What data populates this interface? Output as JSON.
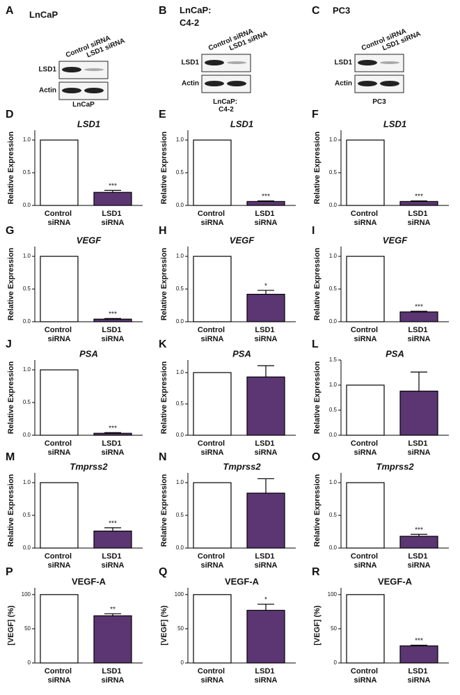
{
  "blots": [
    {
      "panel": "A",
      "title": "LnCaP",
      "lanes": [
        "Control siRNA",
        "LSD1 siRNA"
      ],
      "rows": [
        "LSD1",
        "Actin"
      ],
      "caption": "LnCaP"
    },
    {
      "panel": "B",
      "title": "LnCaP: C4-2",
      "lanes": [
        "Control siRNA",
        "LSD1 siRNA"
      ],
      "rows": [
        "LSD1",
        "Actin"
      ],
      "caption": "LnCaP: C4-2"
    },
    {
      "panel": "C",
      "title": "PC3",
      "lanes": [
        "Control siRNA",
        "LSD1 siRNA"
      ],
      "rows": [
        "LSD1",
        "Actin"
      ],
      "caption": "PC3"
    }
  ],
  "chart_data": [
    {
      "type": "bar",
      "panel": "D",
      "title": "LSD1",
      "ylabel": "Relative Expression",
      "categories": [
        "Control siRNA",
        "LSD1 siRNA"
      ],
      "values": [
        1.0,
        0.2
      ],
      "errors": [
        null,
        0.03
      ],
      "annotation": "***",
      "colors": [
        "#ffffff",
        "#5b3672"
      ],
      "ylim": [
        0,
        1.15
      ],
      "yticks": [
        {
          "value": 0,
          "label": "0.0"
        },
        {
          "value": 0.5,
          "label": "0.5"
        },
        {
          "value": 1,
          "label": "1.0"
        }
      ]
    },
    {
      "type": "bar",
      "panel": "E",
      "title": "LSD1",
      "ylabel": "Relative Expression",
      "categories": [
        "Control siRNA",
        "LSD1 siRNA"
      ],
      "values": [
        1.0,
        0.06
      ],
      "errors": [
        null,
        0.01
      ],
      "annotation": "***",
      "colors": [
        "#ffffff",
        "#5b3672"
      ],
      "ylim": [
        0,
        1.15
      ],
      "yticks": [
        {
          "value": 0,
          "label": "0.0"
        },
        {
          "value": 0.5,
          "label": "0.5"
        },
        {
          "value": 1,
          "label": "1.0"
        }
      ]
    },
    {
      "type": "bar",
      "panel": "F",
      "title": "LSD1",
      "ylabel": "Relative Expression",
      "categories": [
        "Control siRNA",
        "LSD1 siRNA"
      ],
      "values": [
        1.0,
        0.06
      ],
      "errors": [
        null,
        0.01
      ],
      "annotation": "***",
      "colors": [
        "#ffffff",
        "#5b3672"
      ],
      "ylim": [
        0,
        1.15
      ],
      "yticks": [
        {
          "value": 0,
          "label": "0.0"
        },
        {
          "value": 0.5,
          "label": "0.5"
        },
        {
          "value": 1,
          "label": "1.0"
        }
      ]
    },
    {
      "type": "bar",
      "panel": "G",
      "title": "VEGF",
      "ylabel": "Relative Expression",
      "categories": [
        "Control siRNA",
        "LSD1 siRNA"
      ],
      "values": [
        1.0,
        0.04
      ],
      "errors": [
        null,
        0.01
      ],
      "annotation": "***",
      "colors": [
        "#ffffff",
        "#5b3672"
      ],
      "ylim": [
        0,
        1.15
      ],
      "yticks": [
        {
          "value": 0,
          "label": "0.0"
        },
        {
          "value": 0.5,
          "label": "0.5"
        },
        {
          "value": 1,
          "label": "1.0"
        }
      ]
    },
    {
      "type": "bar",
      "panel": "H",
      "title": "VEGF",
      "ylabel": "Relative Expression",
      "categories": [
        "Control siRNA",
        "LSD1 siRNA"
      ],
      "values": [
        1.0,
        0.42
      ],
      "errors": [
        null,
        0.06
      ],
      "annotation": "*",
      "colors": [
        "#ffffff",
        "#5b3672"
      ],
      "ylim": [
        0,
        1.15
      ],
      "yticks": [
        {
          "value": 0,
          "label": "0.0"
        },
        {
          "value": 0.5,
          "label": "0.5"
        },
        {
          "value": 1,
          "label": "1.0"
        }
      ]
    },
    {
      "type": "bar",
      "panel": "I",
      "title": "VEGF",
      "ylabel": "Relative Expression",
      "categories": [
        "Control siRNA",
        "LSD1 siRNA"
      ],
      "values": [
        1.0,
        0.15
      ],
      "errors": [
        null,
        0.01
      ],
      "annotation": "***",
      "colors": [
        "#ffffff",
        "#5b3672"
      ],
      "ylim": [
        0,
        1.15
      ],
      "yticks": [
        {
          "value": 0,
          "label": "0.0"
        },
        {
          "value": 0.5,
          "label": "0.5"
        },
        {
          "value": 1,
          "label": "1.0"
        }
      ]
    },
    {
      "type": "bar",
      "panel": "J",
      "title": "PSA",
      "ylabel": "Relative Expression",
      "categories": [
        "Control siRNA",
        "LSD1 siRNA"
      ],
      "values": [
        1.0,
        0.03
      ],
      "errors": [
        null,
        0.01
      ],
      "annotation": "***",
      "colors": [
        "#ffffff",
        "#5b3672"
      ],
      "ylim": [
        0,
        1.15
      ],
      "yticks": [
        {
          "value": 0,
          "label": "0.0"
        },
        {
          "value": 0.5,
          "label": "0.5"
        },
        {
          "value": 1,
          "label": "1.0"
        }
      ]
    },
    {
      "type": "bar",
      "panel": "K",
      "title": "PSA",
      "ylabel": "Relative Expression",
      "categories": [
        "Control siRNA",
        "LSD1 siRNA"
      ],
      "values": [
        1.0,
        0.93
      ],
      "errors": [
        null,
        0.18
      ],
      "colors": [
        "#ffffff",
        "#5b3672"
      ],
      "ylim": [
        0,
        1.2
      ],
      "yticks": [
        {
          "value": 0,
          "label": "0.0"
        },
        {
          "value": 0.5,
          "label": "0.5"
        },
        {
          "value": 1,
          "label": "1.0"
        }
      ]
    },
    {
      "type": "bar",
      "panel": "L",
      "title": "PSA",
      "ylabel": "Relative Expression",
      "categories": [
        "Control siRNA",
        "LSD1 siRNA"
      ],
      "values": [
        1.0,
        0.88
      ],
      "errors": [
        null,
        0.38
      ],
      "colors": [
        "#ffffff",
        "#5b3672"
      ],
      "ylim": [
        0,
        1.5
      ],
      "yticks": [
        {
          "value": 0,
          "label": "0.0"
        },
        {
          "value": 0.5,
          "label": "0.5"
        },
        {
          "value": 1,
          "label": "1.0"
        },
        {
          "value": 1.5,
          "label": "1.5"
        }
      ]
    },
    {
      "type": "bar",
      "panel": "M",
      "title": "Tmprss2",
      "ylabel": "Relative Expression",
      "categories": [
        "Control siRNA",
        "LSD1 siRNA"
      ],
      "values": [
        1.0,
        0.26
      ],
      "errors": [
        null,
        0.05
      ],
      "annotation": "***",
      "colors": [
        "#ffffff",
        "#5b3672"
      ],
      "ylim": [
        0,
        1.15
      ],
      "yticks": [
        {
          "value": 0,
          "label": "0.0"
        },
        {
          "value": 0.5,
          "label": "0.5"
        },
        {
          "value": 1,
          "label": "1.0"
        }
      ]
    },
    {
      "type": "bar",
      "panel": "N",
      "title": "Tmprss2",
      "ylabel": "Relative Expression",
      "categories": [
        "Control siRNA",
        "LSD1 siRNA"
      ],
      "values": [
        1.0,
        0.84
      ],
      "errors": [
        null,
        0.22
      ],
      "colors": [
        "#ffffff",
        "#5b3672"
      ],
      "ylim": [
        0,
        1.15
      ],
      "yticks": [
        {
          "value": 0,
          "label": "0.0"
        },
        {
          "value": 0.5,
          "label": "0.5"
        },
        {
          "value": 1,
          "label": "1.0"
        }
      ]
    },
    {
      "type": "bar",
      "panel": "O",
      "title": "Tmprss2",
      "ylabel": "Relative Expression",
      "categories": [
        "Control siRNA",
        "LSD1 siRNA"
      ],
      "values": [
        1.0,
        0.18
      ],
      "errors": [
        null,
        0.03
      ],
      "annotation": "***",
      "colors": [
        "#ffffff",
        "#5b3672"
      ],
      "ylim": [
        0,
        1.15
      ],
      "yticks": [
        {
          "value": 0,
          "label": "0.0"
        },
        {
          "value": 0.5,
          "label": "0.5"
        },
        {
          "value": 1,
          "label": "1.0"
        }
      ]
    },
    {
      "type": "bar",
      "panel": "P",
      "title": "VEGF-A",
      "ylabel": "[VEGF] (%)",
      "categories": [
        "Control siRNA",
        "LSD1 siRNA"
      ],
      "values": [
        100,
        69
      ],
      "errors": [
        null,
        3
      ],
      "annotation": "**",
      "colors": [
        "#ffffff",
        "#5b3672"
      ],
      "ylim": [
        0,
        110
      ],
      "yticks": [
        0,
        50,
        100
      ]
    },
    {
      "type": "bar",
      "panel": "Q",
      "title": "VEGF-A",
      "ylabel": "[VEGF] (%)",
      "categories": [
        "Control siRNA",
        "LSD1 siRNA"
      ],
      "values": [
        100,
        77
      ],
      "errors": [
        null,
        9
      ],
      "annotation": "*",
      "colors": [
        "#ffffff",
        "#5b3672"
      ],
      "ylim": [
        0,
        110
      ],
      "yticks": [
        0,
        50,
        100
      ]
    },
    {
      "type": "bar",
      "panel": "R",
      "title": "VEGF-A",
      "ylabel": "[VEGF] (%)",
      "categories": [
        "Control siRNA",
        "LSD1 siRNA"
      ],
      "values": [
        100,
        25
      ],
      "errors": [
        null,
        1
      ],
      "annotation": "***",
      "colors": [
        "#ffffff",
        "#5b3672"
      ],
      "ylim": [
        0,
        110
      ],
      "yticks": [
        0,
        50,
        100
      ]
    }
  ]
}
